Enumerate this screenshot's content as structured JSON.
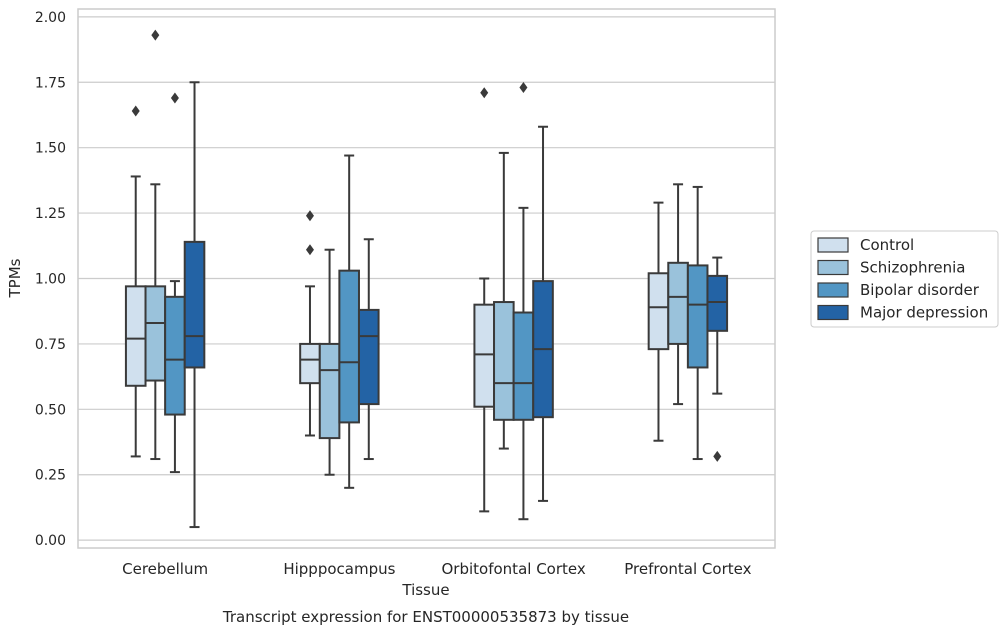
{
  "chart_data": {
    "type": "box",
    "title": "Transcript expression for ENST00000535873 by tissue",
    "xlabel": "Tissue",
    "ylabel": "TPMs",
    "ylim": [
      -0.03,
      2.03
    ],
    "yticks": [
      "0.00",
      "0.25",
      "0.50",
      "0.75",
      "1.00",
      "1.25",
      "1.50",
      "1.75",
      "2.00"
    ],
    "grid": "horizontal",
    "legend_position": "outside-right",
    "categories": [
      "Cerebellum",
      "Hipppocampus",
      "Orbitofontal Cortex",
      "Prefrontal Cortex"
    ],
    "series": [
      {
        "name": "Control",
        "color": "#d0e0ee",
        "boxes": [
          {
            "whisker_low": 0.32,
            "q1": 0.59,
            "median": 0.77,
            "q3": 0.97,
            "whisker_high": 1.39,
            "outliers": [
              1.64
            ]
          },
          {
            "whisker_low": 0.4,
            "q1": 0.6,
            "median": 0.69,
            "q3": 0.75,
            "whisker_high": 0.97,
            "outliers": [
              1.11,
              1.24
            ]
          },
          {
            "whisker_low": 0.11,
            "q1": 0.51,
            "median": 0.71,
            "q3": 0.9,
            "whisker_high": 1.0,
            "outliers": [
              1.71
            ]
          },
          {
            "whisker_low": 0.38,
            "q1": 0.73,
            "median": 0.89,
            "q3": 1.02,
            "whisker_high": 1.29,
            "outliers": []
          }
        ]
      },
      {
        "name": "Schizophrenia",
        "color": "#9ac2db",
        "boxes": [
          {
            "whisker_low": 0.31,
            "q1": 0.61,
            "median": 0.83,
            "q3": 0.97,
            "whisker_high": 1.36,
            "outliers": [
              1.93
            ]
          },
          {
            "whisker_low": 0.25,
            "q1": 0.39,
            "median": 0.65,
            "q3": 0.75,
            "whisker_high": 1.11,
            "outliers": []
          },
          {
            "whisker_low": 0.35,
            "q1": 0.46,
            "median": 0.6,
            "q3": 0.91,
            "whisker_high": 1.48,
            "outliers": []
          },
          {
            "whisker_low": 0.52,
            "q1": 0.75,
            "median": 0.93,
            "q3": 1.06,
            "whisker_high": 1.36,
            "outliers": []
          }
        ]
      },
      {
        "name": "Bipolar disorder",
        "color": "#5296c4",
        "boxes": [
          {
            "whisker_low": 0.26,
            "q1": 0.48,
            "median": 0.69,
            "q3": 0.93,
            "whisker_high": 0.99,
            "outliers": [
              1.69
            ]
          },
          {
            "whisker_low": 0.2,
            "q1": 0.45,
            "median": 0.68,
            "q3": 1.03,
            "whisker_high": 1.47,
            "outliers": []
          },
          {
            "whisker_low": 0.08,
            "q1": 0.46,
            "median": 0.6,
            "q3": 0.87,
            "whisker_high": 1.27,
            "outliers": [
              1.73
            ]
          },
          {
            "whisker_low": 0.31,
            "q1": 0.66,
            "median": 0.9,
            "q3": 1.05,
            "whisker_high": 1.35,
            "outliers": []
          }
        ]
      },
      {
        "name": "Major depression",
        "color": "#2363a5",
        "boxes": [
          {
            "whisker_low": 0.05,
            "q1": 0.66,
            "median": 0.78,
            "q3": 1.14,
            "whisker_high": 1.75,
            "outliers": []
          },
          {
            "whisker_low": 0.31,
            "q1": 0.52,
            "median": 0.78,
            "q3": 0.88,
            "whisker_high": 1.15,
            "outliers": []
          },
          {
            "whisker_low": 0.15,
            "q1": 0.47,
            "median": 0.73,
            "q3": 0.99,
            "whisker_high": 1.58,
            "outliers": []
          },
          {
            "whisker_low": 0.56,
            "q1": 0.8,
            "median": 0.91,
            "q3": 1.01,
            "whisker_high": 1.08,
            "outliers": [
              0.32
            ]
          }
        ]
      }
    ]
  }
}
